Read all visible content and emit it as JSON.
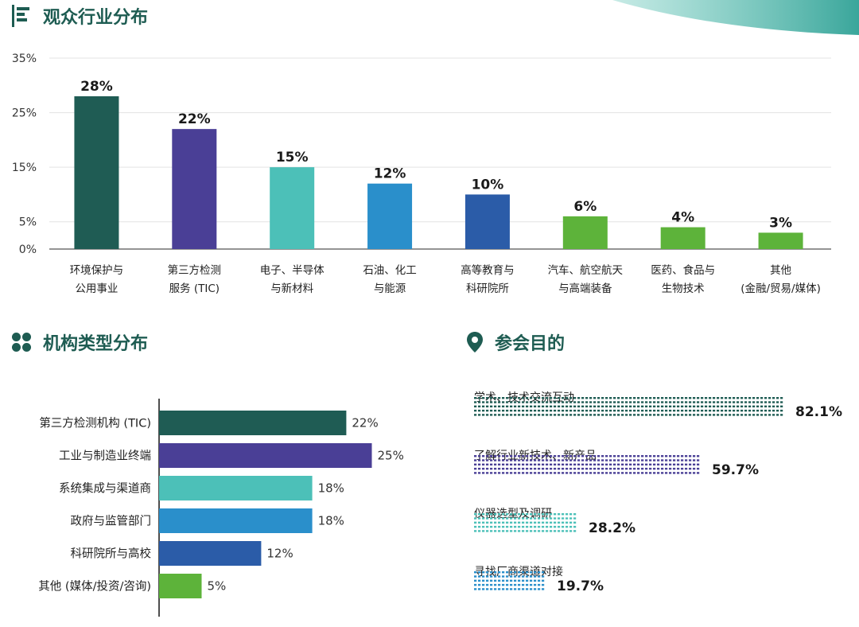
{
  "colors": {
    "dark_green": "#1f5c54",
    "purple": "#4a3f96",
    "teal": "#4cc0b8",
    "blue": "#2a8fcb",
    "navy": "#2b5ca8",
    "green": "#5db33a",
    "heading": "#1e5c52"
  },
  "sections": {
    "industry_title": "观众行业分布",
    "org_title": "机构类型分布",
    "purpose_title": "参会目的"
  },
  "chart_data": [
    {
      "type": "bar",
      "title": "观众行业分布",
      "categories": [
        [
          "环境保护与",
          "公用事业"
        ],
        [
          "第三方检测",
          "服务 (TIC)"
        ],
        [
          "电子、半导体",
          "与新材料"
        ],
        [
          "石油、化工",
          "与能源"
        ],
        [
          "高等教育与",
          "科研院所"
        ],
        [
          "汽车、航空航天",
          "与高端装备"
        ],
        [
          "医药、食品与",
          "生物技术"
        ],
        [
          "其他",
          "(金融/贸易/媒体)"
        ]
      ],
      "values": [
        28,
        22,
        15,
        12,
        10,
        6,
        4,
        3
      ],
      "data_labels": [
        "28%",
        "22%",
        "15%",
        "12%",
        "10%",
        "6%",
        "4%",
        "3%"
      ],
      "yticks": [
        0,
        5,
        15,
        25,
        35
      ],
      "ytick_labels": [
        "0%",
        "5%",
        "15%",
        "25%",
        "35%"
      ],
      "ylim": [
        0,
        35
      ],
      "grid": true,
      "bar_colors": [
        "#1f5c54",
        "#4a3f96",
        "#4cc0b8",
        "#2a8fcb",
        "#2b5ca8",
        "#5db33a",
        "#5db33a",
        "#5db33a"
      ]
    },
    {
      "type": "bar",
      "orientation": "horizontal",
      "title": "机构类型分布",
      "categories": [
        "第三方检测机构 (TIC)",
        "工业与制造业终端",
        "系统集成与渠道商",
        "政府与监管部门",
        "科研院所与高校",
        "其他 (媒体/投资/咨询)"
      ],
      "values": [
        22,
        25,
        18,
        18,
        12,
        5
      ],
      "data_labels": [
        "22%",
        "25%",
        "18%",
        "18%",
        "12%",
        "5%"
      ],
      "bar_colors": [
        "#1f5c54",
        "#4a3f96",
        "#4cc0b8",
        "#2a8fcb",
        "#2b5ca8",
        "#5db33a"
      ]
    },
    {
      "type": "bar",
      "orientation": "horizontal",
      "style": "dotted",
      "title": "参会目的",
      "categories": [
        "学术、技术交流互动",
        "了解行业新技术、新产品",
        "仪器选型及调研",
        "寻找厂商渠道对接"
      ],
      "values": [
        82.1,
        59.7,
        28.2,
        19.7
      ],
      "data_labels": [
        "82.1%",
        "59.7%",
        "28.2%",
        "19.7%"
      ],
      "bar_colors": [
        "#1f5c54",
        "#4a3f96",
        "#4cc0b8",
        "#2a8fcb"
      ]
    }
  ]
}
